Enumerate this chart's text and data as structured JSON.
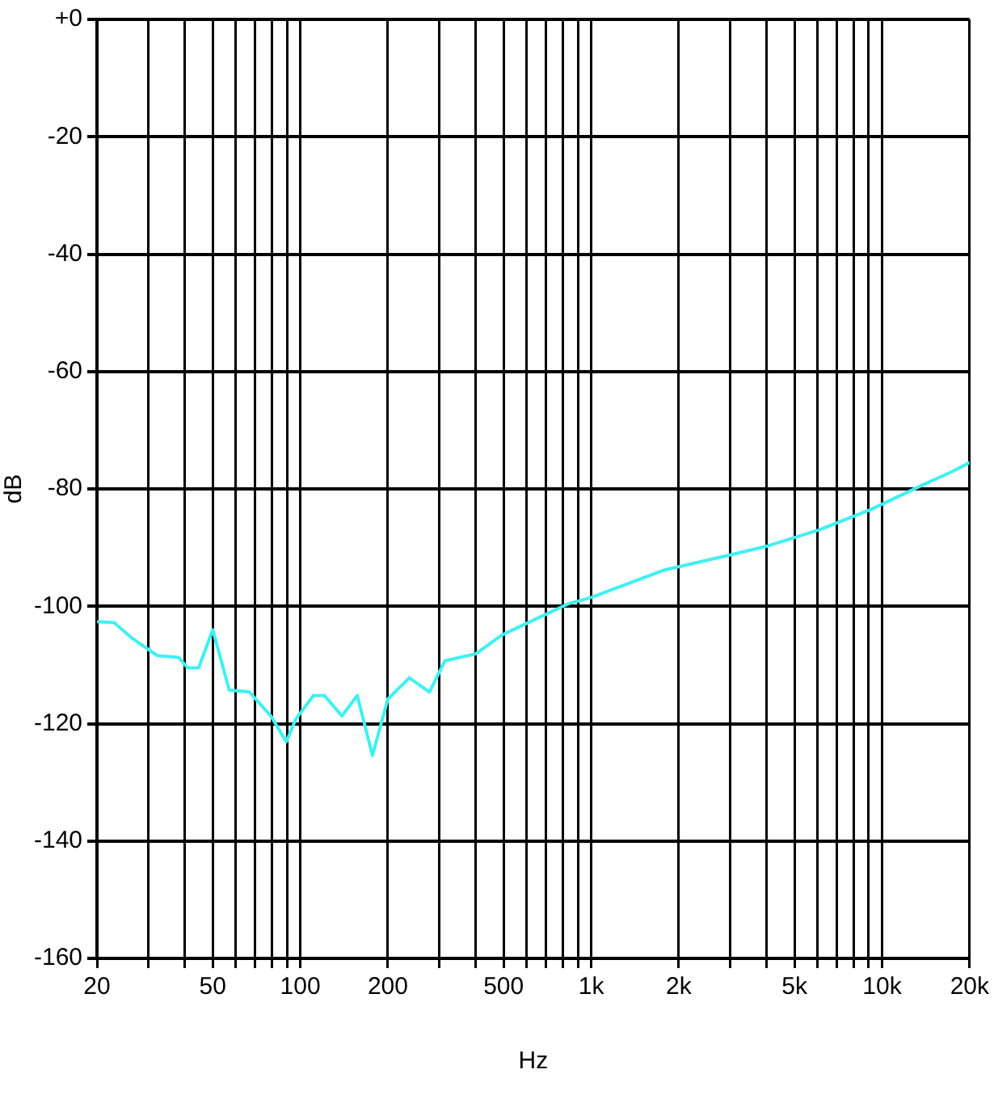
{
  "chart_data": {
    "type": "line",
    "xlabel": "Hz",
    "ylabel": "dB",
    "log": "x",
    "grid": true,
    "legend": false,
    "marker": "none",
    "line_style": "solid",
    "xlim": [
      20,
      20000
    ],
    "ylim": [
      -160,
      0
    ],
    "xticks": [
      20,
      {
        "value": 30,
        "label": null
      },
      {
        "value": 40,
        "label": null
      },
      50,
      {
        "value": 60,
        "label": null
      },
      {
        "value": 70,
        "label": null
      },
      {
        "value": 80,
        "label": null
      },
      {
        "value": 90,
        "label": null
      },
      100,
      200,
      {
        "value": 300,
        "label": null
      },
      {
        "value": 400,
        "label": null
      },
      500,
      {
        "value": 600,
        "label": null
      },
      {
        "value": 700,
        "label": null
      },
      {
        "value": 800,
        "label": null
      },
      {
        "value": 900,
        "label": null
      },
      {
        "value": 1000,
        "label": "1k"
      },
      {
        "value": 2000,
        "label": "2k"
      },
      {
        "value": 3000,
        "label": null
      },
      {
        "value": 4000,
        "label": null
      },
      {
        "value": 5000,
        "label": "5k"
      },
      {
        "value": 6000,
        "label": null
      },
      {
        "value": 7000,
        "label": null
      },
      {
        "value": 8000,
        "label": null
      },
      {
        "value": 9000,
        "label": null
      },
      {
        "value": 10000,
        "label": "10k"
      },
      {
        "value": 20000,
        "label": "20k"
      }
    ],
    "yticks": [
      {
        "value": 0,
        "label": "+0"
      },
      -20,
      -40,
      -60,
      -80,
      -100,
      -120,
      -140,
      -160
    ],
    "x": [
      20,
      22.9,
      26.5,
      32.2,
      38.1,
      41,
      44.7,
      50,
      57,
      66.8,
      79.2,
      89.5,
      96.3,
      111,
      121,
      139,
      157,
      177,
      200,
      237,
      278,
      314,
      401,
      493,
      832,
      1000,
      1790,
      2920,
      4060,
      6060,
      9170,
      13700,
      17500,
      20000
    ],
    "series": [
      {
        "color": "#40f0f0",
        "values": [
          -102.6,
          -102.8,
          -105.5,
          -108.4,
          -108.7,
          -110.5,
          -110.5,
          -104,
          -114.3,
          -114.6,
          -118.7,
          -123.1,
          -119.3,
          -115.2,
          -115.2,
          -118.7,
          -115.2,
          -125.4,
          -115.8,
          -112.2,
          -114.6,
          -109.3,
          -108.1,
          -104.9,
          -99.6,
          -98.5,
          -93.8,
          -91.4,
          -89.7,
          -87,
          -83.5,
          -79.4,
          -77,
          -75.5
        ]
      }
    ]
  }
}
